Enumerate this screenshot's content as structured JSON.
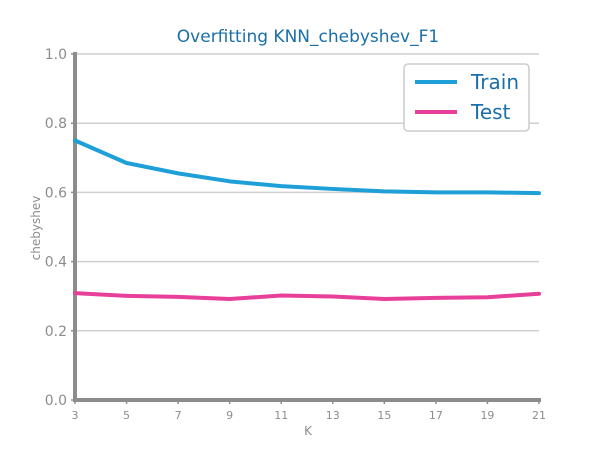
{
  "chart_data": {
    "type": "line",
    "title": "Overfitting KNN_chebyshev_F1",
    "xlabel": "K",
    "ylabel": "chebyshev",
    "x": [
      3,
      5,
      7,
      9,
      11,
      13,
      15,
      17,
      19,
      21
    ],
    "x_tick_labels": [
      "3",
      "5",
      "7",
      "9",
      "11",
      "13",
      "15",
      "17",
      "19",
      "21"
    ],
    "xlim": [
      3,
      21
    ],
    "ylim": [
      0.0,
      1.0
    ],
    "y_ticks": [
      0.0,
      0.2,
      0.4,
      0.6,
      0.8,
      1.0
    ],
    "y_tick_labels": [
      "0.0",
      "0.2",
      "0.4",
      "0.6",
      "0.8",
      "1.0"
    ],
    "grid": "horizontal",
    "legend_position": "top-right",
    "series": [
      {
        "name": "Train",
        "color": "#1f9fd8",
        "values": [
          0.75,
          0.685,
          0.655,
          0.632,
          0.618,
          0.61,
          0.603,
          0.6,
          0.6,
          0.598
        ]
      },
      {
        "name": "Test",
        "color": "#e8409a",
        "values": [
          0.309,
          0.301,
          0.298,
          0.292,
          0.302,
          0.299,
          0.292,
          0.295,
          0.297,
          0.307
        ]
      }
    ]
  }
}
